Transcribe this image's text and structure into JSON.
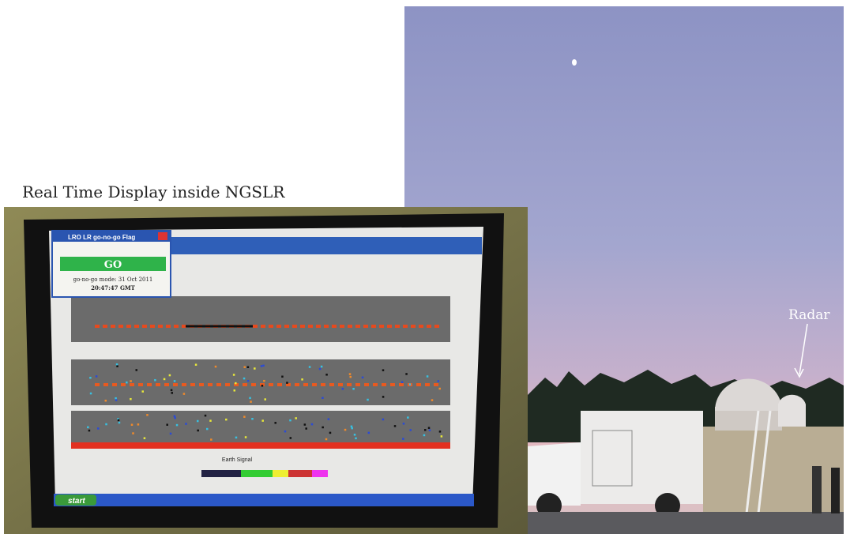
{
  "captions": {
    "left": "Real Time Display inside NGSLR",
    "right": "Radar"
  },
  "screen": {
    "window_title": "LRO LR go-no-go Flag",
    "status": "GO",
    "mode": "go-no-go mode: 31 Oct 2011",
    "time": "20:47:47 GMT",
    "axis_label": "Earth Signal",
    "taskbar_start": "start"
  }
}
